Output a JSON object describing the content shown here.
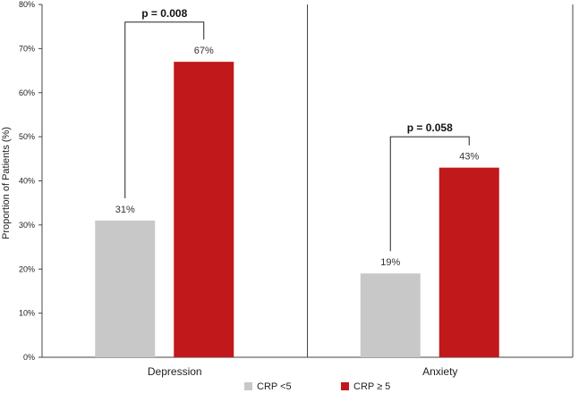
{
  "chart_data": {
    "type": "bar",
    "categories": [
      "Depression",
      "Anxiety"
    ],
    "series": [
      {
        "name": "CRP <5",
        "color": "#c8c8c8",
        "values": [
          31,
          19
        ]
      },
      {
        "name": "CRP ≥ 5",
        "color": "#c0181b",
        "values": [
          67,
          43
        ]
      }
    ],
    "value_labels": [
      [
        "31%",
        "19%"
      ],
      [
        "67%",
        "43%"
      ]
    ],
    "ylabel": "Proportion of Patients (%)",
    "xlabel": "",
    "ylim": [
      0,
      80
    ],
    "yticks": [
      0,
      10,
      20,
      30,
      40,
      50,
      60,
      70,
      80
    ],
    "ytick_labels": [
      "0%",
      "10%",
      "20%",
      "30%",
      "40%",
      "50%",
      "60%",
      "70%",
      "80%"
    ],
    "annotations": [
      {
        "category": "Depression",
        "text": "p = 0.008",
        "bracket_top": 76
      },
      {
        "category": "Anxiety",
        "text": "p = 0.058",
        "bracket_top": 50
      }
    ],
    "legend_position": "bottom",
    "grid": false
  }
}
